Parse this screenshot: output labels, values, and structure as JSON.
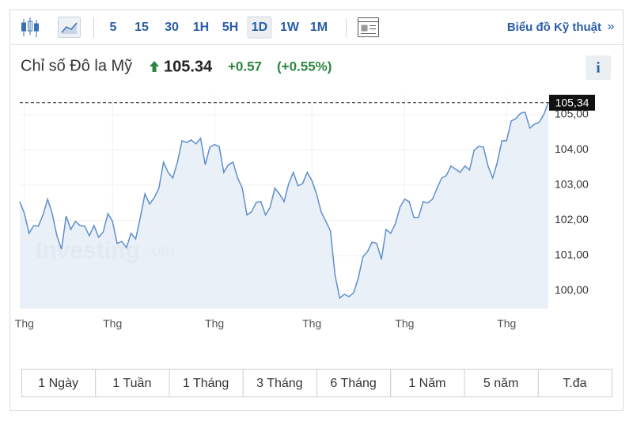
{
  "toolbar": {
    "intervals": [
      "5",
      "15",
      "30",
      "1H",
      "5H",
      "1D",
      "1W",
      "1M"
    ],
    "selected": "1D",
    "link": "Biểu đồ Kỹ thuật",
    "link_arrow": "»"
  },
  "header": {
    "name": "Chỉ số Đô la Mỹ",
    "price": "105.34",
    "change": "+0.57",
    "change_pct": "(+0.55%)",
    "info": "i"
  },
  "chart_data": {
    "type": "line",
    "color": "#5d8fcb",
    "fill": "#e6edf6",
    "grid": true,
    "watermark": {
      "brand": "Investing",
      "suffix": ".com"
    },
    "last_price": {
      "value": 105.34,
      "label": "105,34"
    },
    "categories": [
      null,
      "Thg",
      null,
      null,
      null,
      null,
      null,
      null,
      null,
      null,
      null,
      null,
      null,
      null,
      null,
      null,
      null,
      null,
      null,
      null,
      "Thg",
      null,
      null,
      null,
      null,
      null,
      null,
      null,
      null,
      null,
      null,
      null,
      null,
      null,
      null,
      null,
      null,
      null,
      null,
      null,
      null,
      null,
      "Thg",
      null,
      null,
      null,
      null,
      null,
      null,
      null,
      null,
      null,
      null,
      null,
      null,
      null,
      null,
      null,
      null,
      null,
      null,
      null,
      null,
      "Thg",
      null,
      null,
      null,
      null,
      null,
      null,
      null,
      null,
      null,
      null,
      null,
      null,
      null,
      null,
      null,
      null,
      null,
      null,
      null,
      "Thg",
      null,
      null,
      null,
      null,
      null,
      null,
      null,
      null,
      null,
      null,
      null,
      null,
      null,
      null,
      null,
      null,
      null,
      null,
      null,
      null,
      null,
      "Thg",
      null,
      null,
      null,
      null,
      null,
      null,
      null,
      null,
      null
    ],
    "values": [
      102.53,
      102.19,
      101.63,
      101.85,
      101.83,
      102.15,
      102.6,
      102.19,
      101.56,
      101.18,
      102.12,
      101.74,
      101.97,
      101.85,
      101.83,
      101.56,
      101.85,
      101.52,
      101.67,
      102.19,
      101.97,
      101.34,
      101.4,
      101.22,
      101.63,
      101.47,
      102.08,
      102.75,
      102.46,
      102.64,
      102.91,
      103.65,
      103.36,
      103.2,
      103.65,
      104.26,
      104.21,
      104.28,
      104.17,
      104.33,
      103.58,
      104.08,
      104.15,
      104.1,
      103.36,
      103.58,
      103.65,
      103.2,
      102.91,
      102.15,
      102.24,
      102.51,
      102.53,
      102.15,
      102.37,
      102.91,
      102.75,
      102.53,
      103.04,
      103.36,
      102.98,
      103.04,
      103.36,
      103.13,
      102.75,
      102.24,
      101.97,
      101.7,
      100.44,
      99.79,
      99.9,
      99.83,
      99.94,
      100.35,
      100.96,
      101.11,
      101.38,
      101.34,
      100.89,
      101.74,
      101.63,
      101.9,
      102.37,
      102.6,
      102.53,
      102.08,
      102.08,
      102.53,
      102.49,
      102.6,
      102.91,
      103.2,
      103.27,
      103.54,
      103.45,
      103.36,
      103.54,
      103.43,
      103.99,
      104.1,
      104.08,
      103.54,
      103.2,
      103.65,
      104.26,
      104.26,
      104.82,
      104.89,
      105.04,
      105.07,
      104.62,
      104.73,
      104.78,
      105.0,
      105.34
    ],
    "ylim": [
      99.49,
      105.56
    ],
    "yticks": [
      {
        "value": 100,
        "label": "100,00"
      },
      {
        "value": 101,
        "label": "101,00"
      },
      {
        "value": 102,
        "label": "102,00"
      },
      {
        "value": 103,
        "label": "103,00"
      },
      {
        "value": 104,
        "label": "104,00"
      },
      {
        "value": 105,
        "label": "105,00"
      }
    ]
  },
  "ranges": [
    "1 Ngày",
    "1 Tuần",
    "1 Tháng",
    "3 Tháng",
    "6 Tháng",
    "1 Năm",
    "5 năm",
    "T.đa"
  ]
}
